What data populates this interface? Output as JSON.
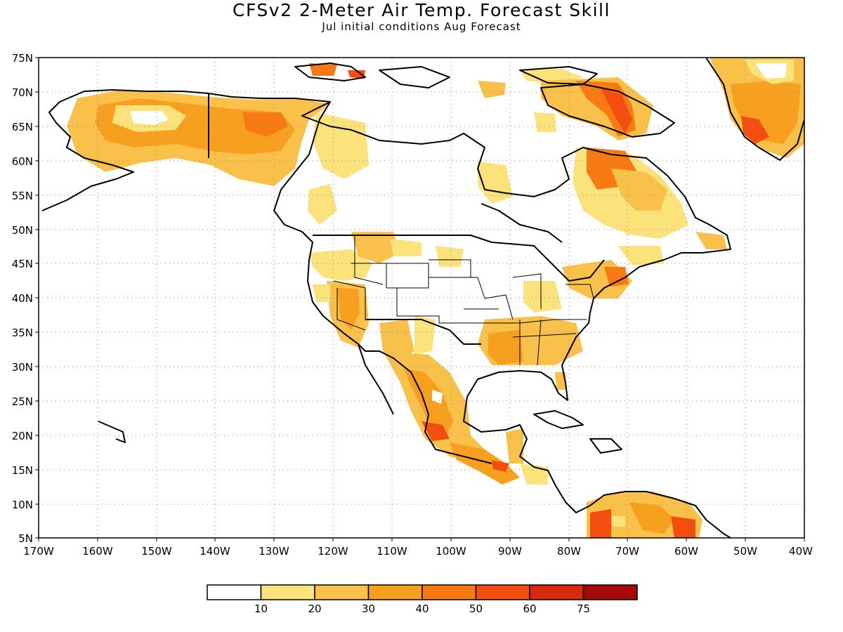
{
  "title": "CFSv2 2-Meter Air Temp. Forecast Skill",
  "subtitle": "Jul initial conditions   Aug Forecast",
  "lat_labels": [
    "75N",
    "70N",
    "65N",
    "60N",
    "55N",
    "50N",
    "45N",
    "40N",
    "35N",
    "30N",
    "25N",
    "20N",
    "15N",
    "10N",
    "5N"
  ],
  "lon_labels": [
    "170W",
    "160W",
    "150W",
    "140W",
    "130W",
    "120W",
    "110W",
    "100W",
    "90W",
    "80W",
    "70W",
    "60W",
    "50W",
    "40W"
  ],
  "colorbar": {
    "labels": [
      "10",
      "20",
      "30",
      "40",
      "50",
      "60",
      "75"
    ],
    "colors": [
      "#ffffff",
      "#fbe27a",
      "#f9c04a",
      "#f7a020",
      "#f77a12",
      "#f44d10",
      "#d82b0e",
      "#a50b06"
    ]
  }
}
